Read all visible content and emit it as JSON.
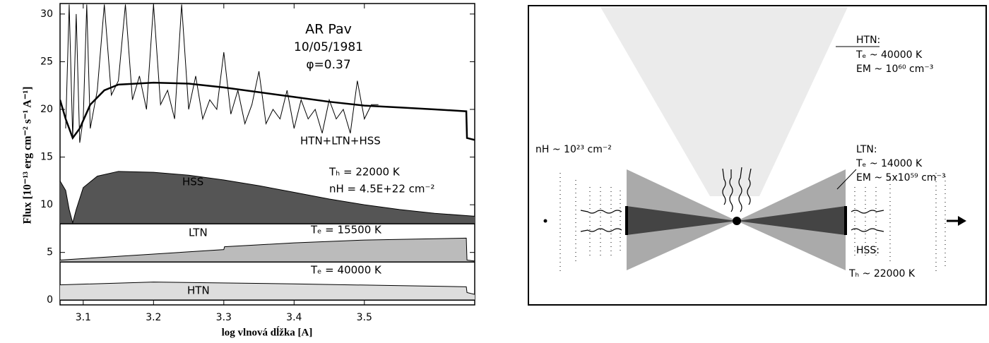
{
  "chart_data": {
    "type": "line",
    "xlabel": "log vlnová dĺžka [A]",
    "ylabel": "Flux [10⁻¹³ erg cm⁻² s⁻¹ A⁻¹]",
    "xlim": [
      3.067,
      3.657
    ],
    "ylim": [
      -0.5,
      31.1
    ],
    "xticks": [
      3.1,
      3.2,
      3.3,
      3.4,
      3.5
    ],
    "yticks": [
      0,
      5,
      10,
      15,
      20,
      25,
      30
    ],
    "annotations": [
      "AR Pav",
      "10/05/1981",
      "φ=0.37",
      "Tₕ = 22000 K",
      "nH = 4.5E+22 cm⁻²",
      "Tₑ = 15500 K",
      "Tₑ = 40000 K"
    ],
    "series": [
      {
        "name": "HTN+LTN+HSS",
        "color": "#000000",
        "x": [
          3.067,
          3.075,
          3.085,
          3.095,
          3.11,
          3.13,
          3.15,
          3.2,
          3.25,
          3.3,
          3.35,
          3.4,
          3.45,
          3.5,
          3.55,
          3.6,
          3.645,
          3.646,
          3.657
        ],
        "values": [
          21,
          19,
          17,
          18,
          20.5,
          22,
          22.6,
          22.8,
          22.7,
          22.3,
          21.8,
          21.3,
          20.8,
          20.4,
          20.2,
          20,
          19.8,
          17,
          16.8
        ]
      },
      {
        "color": "#000000",
        "x": [
          3.075,
          3.08,
          3.085,
          3.09,
          3.095,
          3.1,
          3.105,
          3.11,
          3.12,
          3.13,
          3.14,
          3.15,
          3.16,
          3.17,
          3.18,
          3.19,
          3.2,
          3.21,
          3.22,
          3.23,
          3.24,
          3.25,
          3.26,
          3.27,
          3.28,
          3.29,
          3.3,
          3.31,
          3.32,
          3.33,
          3.34,
          3.35,
          3.36,
          3.37,
          3.38,
          3.39,
          3.4,
          3.41,
          3.42,
          3.43,
          3.44,
          3.45,
          3.46,
          3.47,
          3.48,
          3.49,
          3.5,
          3.51,
          3.52
        ],
        "values": [
          18,
          31,
          17,
          30,
          16.5,
          19,
          31,
          18,
          22,
          31,
          21.5,
          23,
          31,
          21,
          23.5,
          20,
          31,
          20.5,
          22,
          19,
          31,
          20,
          23.5,
          19,
          21,
          20,
          26,
          19.5,
          22,
          18.5,
          20.5,
          24,
          18.5,
          20,
          19,
          22,
          18,
          21,
          19,
          20,
          17.5,
          21,
          19,
          20,
          17.5,
          23,
          19,
          20.5,
          20.5
        ]
      },
      {
        "name": "HSS",
        "color": "#555555",
        "base": 8,
        "x": [
          3.067,
          3.075,
          3.08,
          3.085,
          3.09,
          3.1,
          3.12,
          3.15,
          3.2,
          3.25,
          3.3,
          3.35,
          3.4,
          3.45,
          3.5,
          3.55,
          3.6,
          3.657
        ],
        "values": [
          12.5,
          11.5,
          9.5,
          8.1,
          9.5,
          11.8,
          13,
          13.5,
          13.4,
          13.1,
          12.6,
          12,
          11.3,
          10.6,
          10,
          9.5,
          9.1,
          8.8
        ]
      },
      {
        "name": "LTN",
        "color": "#bbbbbb",
        "base": 4,
        "x": [
          3.067,
          3.3,
          3.301,
          3.4,
          3.5,
          3.645,
          3.646,
          3.657
        ],
        "values": [
          4.2,
          5.3,
          5.6,
          6,
          6.3,
          6.5,
          4.2,
          4.1
        ]
      },
      {
        "name": "HTN",
        "color": "#dddddd",
        "base": 0,
        "x": [
          3.067,
          3.2,
          3.4,
          3.645,
          3.646,
          3.657
        ],
        "values": [
          1.6,
          1.9,
          1.7,
          1.4,
          0.8,
          0.6
        ]
      }
    ]
  },
  "diagram": {
    "labels": [
      "HTN:",
      "Tₑ ~ 40000 K",
      "EM ~ 10⁶⁰ cm⁻³",
      "LTN:",
      "Tₑ ~ 14000 K",
      "EM ~ 5x10⁵⁹ cm⁻³",
      "nH ~ 10²³ cm⁻²",
      "HSS:",
      "Tₕ ~ 22000 K"
    ]
  }
}
